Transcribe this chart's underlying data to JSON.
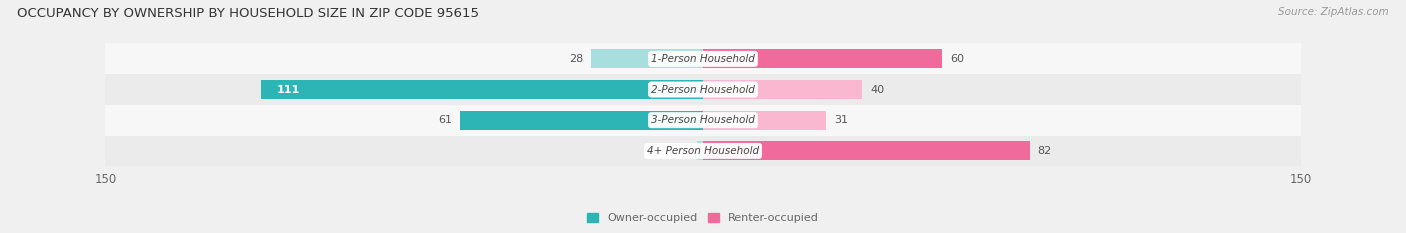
{
  "title": "OCCUPANCY BY OWNERSHIP BY HOUSEHOLD SIZE IN ZIP CODE 95615",
  "source": "Source: ZipAtlas.com",
  "categories": [
    "1-Person Household",
    "2-Person Household",
    "3-Person Household",
    "4+ Person Household"
  ],
  "owner_values": [
    28,
    111,
    61,
    0
  ],
  "renter_values": [
    60,
    40,
    31,
    82
  ],
  "xlim": 150,
  "owner_color": "#2db5b5",
  "renter_color": "#f06a9b",
  "owner_color_light": "#a8dede",
  "renter_color_light": "#f9b8d0",
  "bar_height": 0.62,
  "title_fontsize": 9.5,
  "source_fontsize": 7.5,
  "tick_fontsize": 8.5,
  "bar_label_fontsize": 8,
  "cat_fontsize": 7.5,
  "legend_fontsize": 8,
  "row_colors": [
    "#f7f7f7",
    "#ebebeb"
  ]
}
